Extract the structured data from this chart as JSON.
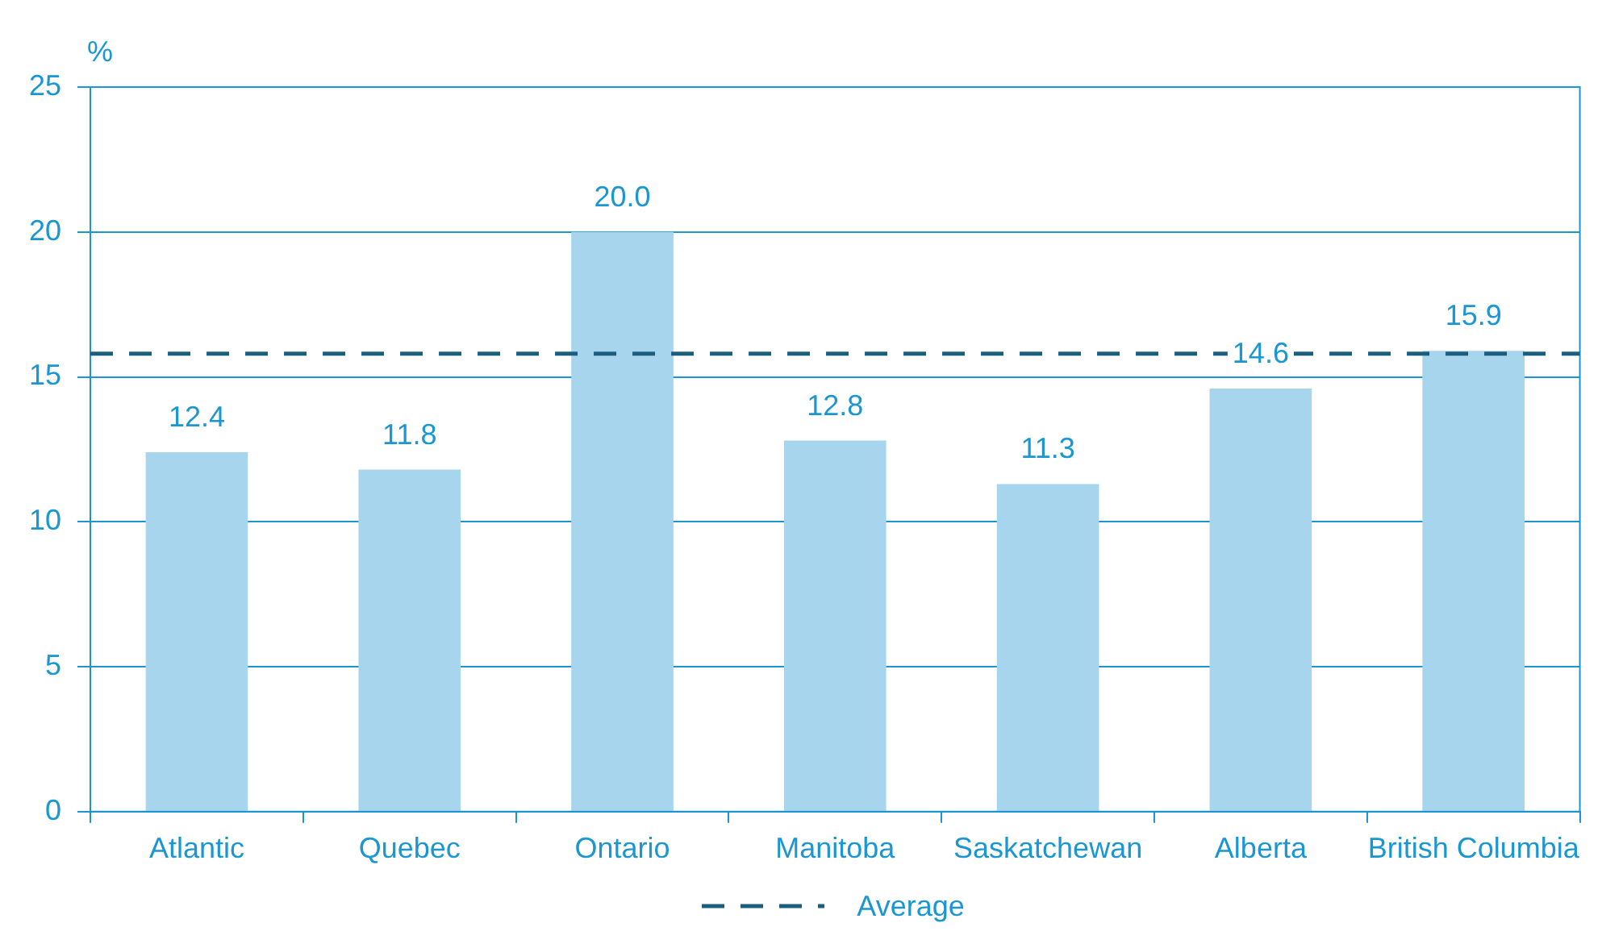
{
  "chart_data": {
    "type": "bar",
    "ylabel": "%",
    "categories": [
      "Atlantic",
      "Quebec",
      "Ontario",
      "Manitoba",
      "Saskatchewan",
      "Alberta",
      "British Columbia"
    ],
    "values": [
      12.4,
      11.8,
      20.0,
      12.8,
      11.3,
      14.6,
      15.9
    ],
    "color": "#a8d5ee",
    "value_labels": [
      "12.4",
      "11.8",
      "20.0",
      "12.8",
      "11.3",
      "14.6",
      "15.9"
    ],
    "ylim": [
      0,
      25
    ],
    "yticks": [
      0,
      5,
      10,
      15,
      20,
      25
    ],
    "grid": "y",
    "ref_lines": [
      {
        "axis": "y",
        "value": 15.8,
        "label": "Average",
        "color": "#1b5e80",
        "line_style": "dashed"
      }
    ],
    "legend": "bottom"
  }
}
